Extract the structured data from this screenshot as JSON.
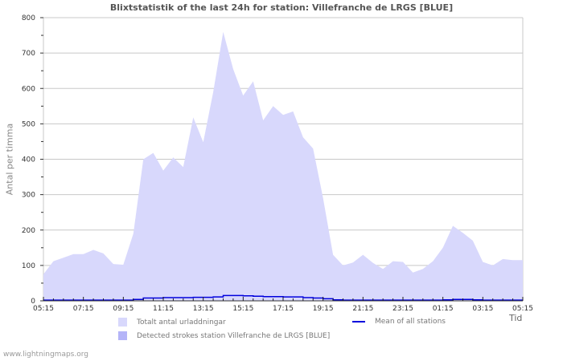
{
  "title": "Blixtstatistik of the last 24h for station: Villefranche de LRGS [BLUE]",
  "ylabel": "Antal per timma",
  "xlabel": "Tid",
  "footer": "www.lightningmaps.org",
  "legend": {
    "total": "Totalt antal urladdningar",
    "mean": "Mean of all stations",
    "detected": "Detected strokes station Villefranche de LRGS [BLUE]"
  },
  "colors": {
    "total": "#d8d8fc",
    "detected": "#b4b4f8",
    "mean": "#0000dd",
    "grid": "#c8c8c8"
  },
  "chart_data": {
    "type": "area",
    "title": "Blixtstatistik of the last 24h for station: Villefranche de LRGS [BLUE]",
    "xlabel": "Tid",
    "ylabel": "Antal per timma",
    "ylim": [
      0,
      800
    ],
    "yticks": [
      0,
      100,
      200,
      300,
      400,
      500,
      600,
      700,
      800
    ],
    "xticks": [
      "05:15",
      "07:15",
      "09:15",
      "11:15",
      "13:15",
      "15:15",
      "17:15",
      "19:15",
      "21:15",
      "23:15",
      "01:15",
      "03:15",
      "05:15"
    ],
    "grid": true,
    "legend_position": "bottom",
    "x": [
      "05:15",
      "05:45",
      "06:15",
      "06:45",
      "07:15",
      "07:45",
      "08:15",
      "08:45",
      "09:15",
      "09:45",
      "10:15",
      "10:45",
      "11:15",
      "11:45",
      "12:15",
      "12:45",
      "13:15",
      "13:45",
      "14:15",
      "14:45",
      "15:15",
      "15:45",
      "16:15",
      "16:45",
      "17:15",
      "17:45",
      "18:15",
      "18:45",
      "19:15",
      "19:45",
      "20:15",
      "20:45",
      "21:15",
      "21:45",
      "22:15",
      "22:45",
      "23:15",
      "23:45",
      "00:15",
      "00:45",
      "01:15",
      "01:45",
      "02:15",
      "02:45",
      "03:15",
      "03:45",
      "04:15",
      "04:45",
      "05:15"
    ],
    "series": [
      {
        "name": "Totalt antal urladdningar",
        "values": [
          75,
          112,
          122,
          132,
          132,
          144,
          134,
          104,
          102,
          190,
          400,
          418,
          368,
          405,
          378,
          518,
          448,
          590,
          760,
          655,
          580,
          620,
          510,
          550,
          525,
          535,
          462,
          430,
          290,
          130,
          100,
          108,
          130,
          107,
          90,
          112,
          110,
          80,
          90,
          112,
          150,
          212,
          192,
          170,
          110,
          100,
          118,
          115,
          115
        ]
      },
      {
        "name": "Detected strokes station Villefranche de LRGS [BLUE]",
        "values": [
          0,
          0,
          0,
          0,
          0,
          0,
          0,
          0,
          0,
          0,
          0,
          0,
          0,
          0,
          0,
          0,
          0,
          0,
          0,
          0,
          0,
          0,
          0,
          0,
          0,
          0,
          0,
          0,
          0,
          0,
          0,
          0,
          0,
          0,
          0,
          0,
          0,
          0,
          0,
          0,
          0,
          0,
          0,
          0,
          0,
          0,
          0,
          0,
          0
        ]
      },
      {
        "name": "Mean of all stations",
        "values": [
          2,
          2,
          2,
          2,
          2,
          2,
          2,
          2,
          2,
          4,
          8,
          8,
          9,
          9,
          9,
          10,
          10,
          11,
          15,
          15,
          14,
          13,
          12,
          12,
          11,
          11,
          9,
          8,
          6,
          3,
          2,
          2,
          2,
          2,
          2,
          2,
          2,
          2,
          2,
          2,
          3,
          4,
          4,
          3,
          2,
          2,
          2,
          2,
          2
        ]
      }
    ]
  }
}
